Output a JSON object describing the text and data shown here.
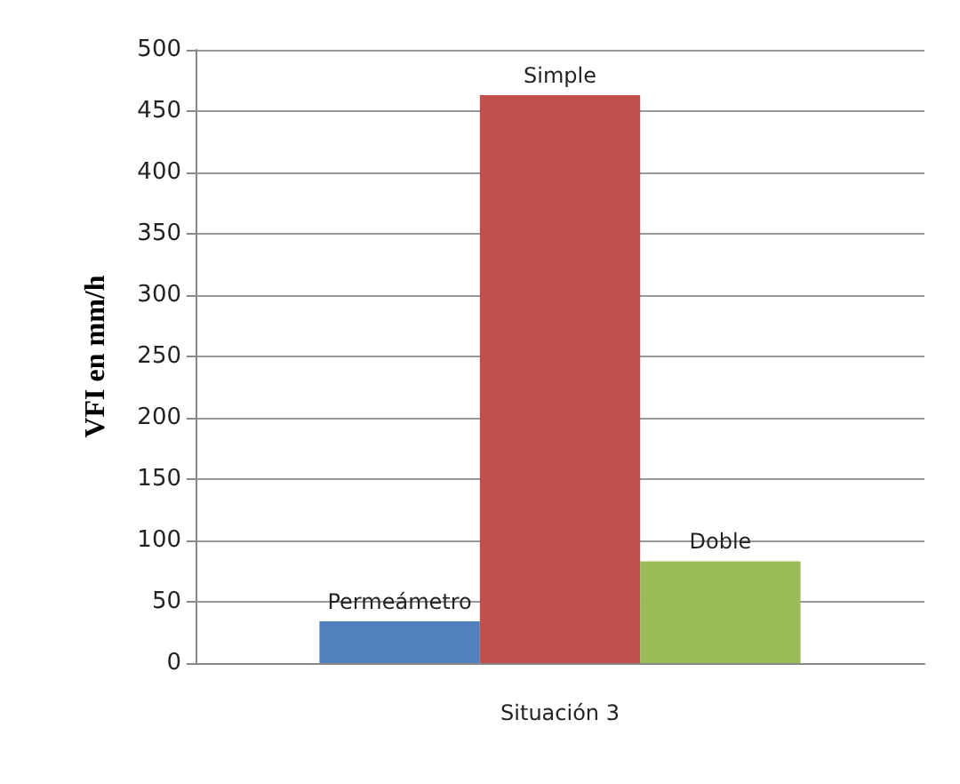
{
  "chart_data": {
    "type": "bar",
    "ylabel": "VFI en mm/h",
    "categories": [
      "Situación 3"
    ],
    "series": [
      {
        "name": "Permeámetro",
        "color": "#4f81bd",
        "values": [
          34
        ]
      },
      {
        "name": "Simple",
        "color": "#c0504d",
        "values": [
          463
        ]
      },
      {
        "name": "Doble",
        "color": "#9bbb59",
        "values": [
          83
        ]
      }
    ],
    "ylim": [
      0,
      500
    ],
    "yticks": [
      0,
      50,
      100,
      150,
      200,
      250,
      300,
      350,
      400,
      450,
      500
    ],
    "grid": true,
    "legend": false
  }
}
